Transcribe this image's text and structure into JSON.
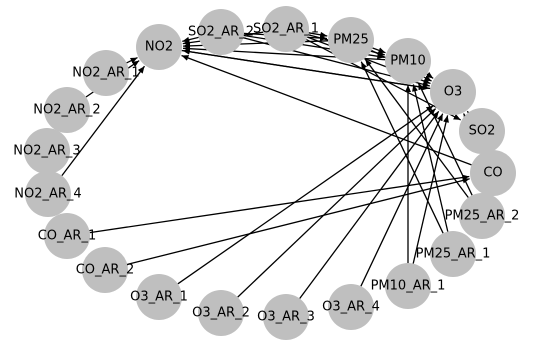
{
  "graph": {
    "type": "directed-graph",
    "node_color": "#bfbfbf",
    "edge_color": "#000000",
    "nodes": [
      {
        "id": "NO2",
        "label": "NO2"
      },
      {
        "id": "SO2_AR_2",
        "label": "SO2_AR_2"
      },
      {
        "id": "SO2_AR_1",
        "label": "SO2_AR_1"
      },
      {
        "id": "PM25",
        "label": "PM25"
      },
      {
        "id": "PM10",
        "label": "PM10"
      },
      {
        "id": "O3",
        "label": "O3"
      },
      {
        "id": "SO2",
        "label": "SO2"
      },
      {
        "id": "CO",
        "label": "CO"
      },
      {
        "id": "PM25_AR_2",
        "label": "PM25_AR_2"
      },
      {
        "id": "PM25_AR_1",
        "label": "PM25_AR_1"
      },
      {
        "id": "PM10_AR_1",
        "label": "PM10_AR_1"
      },
      {
        "id": "O3_AR_4",
        "label": "O3_AR_4"
      },
      {
        "id": "O3_AR_3",
        "label": "O3_AR_3"
      },
      {
        "id": "O3_AR_2",
        "label": "O3_AR_2"
      },
      {
        "id": "O3_AR_1",
        "label": "O3_AR_1"
      },
      {
        "id": "CO_AR_2",
        "label": "CO_AR_2"
      },
      {
        "id": "CO_AR_1",
        "label": "CO_AR_1"
      },
      {
        "id": "NO2_AR_4",
        "label": "NO2_AR_4"
      },
      {
        "id": "NO2_AR_3",
        "label": "NO2_AR_3"
      },
      {
        "id": "NO2_AR_2",
        "label": "NO2_AR_2"
      },
      {
        "id": "NO2_AR_1",
        "label": "NO2_AR_1"
      }
    ],
    "edges": [
      {
        "from": "NO2_AR_1",
        "to": "NO2"
      },
      {
        "from": "NO2_AR_2",
        "to": "NO2"
      },
      {
        "from": "NO2_AR_4",
        "to": "NO2"
      },
      {
        "from": "SO2_AR_2",
        "to": "NO2"
      },
      {
        "from": "SO2_AR_1",
        "to": "NO2"
      },
      {
        "from": "PM25",
        "to": "NO2"
      },
      {
        "from": "PM10",
        "to": "NO2"
      },
      {
        "from": "O3",
        "to": "NO2"
      },
      {
        "from": "CO",
        "to": "NO2"
      },
      {
        "from": "SO2_AR_2",
        "to": "PM25"
      },
      {
        "from": "SO2_AR_2",
        "to": "PM10"
      },
      {
        "from": "SO2_AR_2",
        "to": "O3"
      },
      {
        "from": "SO2_AR_1",
        "to": "PM25"
      },
      {
        "from": "SO2_AR_1",
        "to": "PM10"
      },
      {
        "from": "SO2_AR_1",
        "to": "O3"
      },
      {
        "from": "SO2_AR_1",
        "to": "SO2"
      },
      {
        "from": "NO2",
        "to": "O3"
      },
      {
        "from": "PM25",
        "to": "PM10"
      },
      {
        "from": "PM25",
        "to": "O3"
      },
      {
        "from": "PM10",
        "to": "O3"
      },
      {
        "from": "SO2",
        "to": "O3"
      },
      {
        "from": "CO",
        "to": "O3"
      },
      {
        "from": "PM25_AR_2",
        "to": "PM25"
      },
      {
        "from": "PM25_AR_2",
        "to": "PM10"
      },
      {
        "from": "PM25_AR_1",
        "to": "PM25"
      },
      {
        "from": "PM25_AR_1",
        "to": "PM10"
      },
      {
        "from": "PM10_AR_1",
        "to": "PM10"
      },
      {
        "from": "PM10_AR_1",
        "to": "O3"
      },
      {
        "from": "O3_AR_4",
        "to": "O3"
      },
      {
        "from": "O3_AR_3",
        "to": "O3"
      },
      {
        "from": "O3_AR_2",
        "to": "O3"
      },
      {
        "from": "O3_AR_1",
        "to": "O3"
      },
      {
        "from": "CO_AR_2",
        "to": "CO"
      },
      {
        "from": "CO_AR_1",
        "to": "CO"
      }
    ]
  }
}
